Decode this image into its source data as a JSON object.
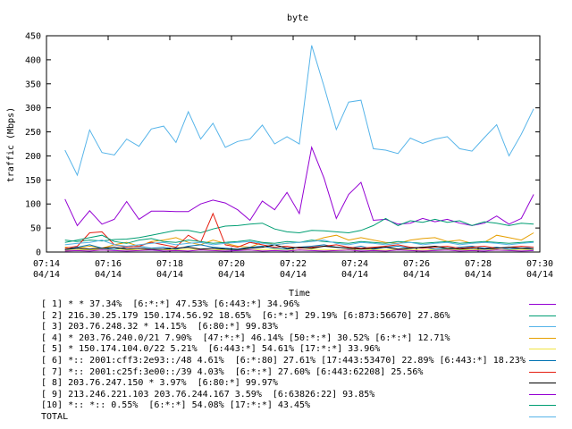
{
  "chart_data": {
    "type": "line",
    "title": "byte",
    "xlabel": "Time",
    "ylabel": "traffic (Mbps)",
    "ylim": [
      0,
      450
    ],
    "yticks": [
      0,
      50,
      100,
      150,
      200,
      250,
      300,
      350,
      400,
      450
    ],
    "xlim": [
      0,
      16
    ],
    "x_ticks": [
      {
        "x": 0,
        "line1": "07:14",
        "line2": "04/14"
      },
      {
        "x": 2,
        "line1": "07:16",
        "line2": "04/14"
      },
      {
        "x": 4,
        "line1": "07:18",
        "line2": "04/14"
      },
      {
        "x": 6,
        "line1": "07:20",
        "line2": "04/14"
      },
      {
        "x": 8,
        "line1": "07:22",
        "line2": "04/14"
      },
      {
        "x": 10,
        "line1": "07:24",
        "line2": "04/14"
      },
      {
        "x": 12,
        "line1": "07:26",
        "line2": "04/14"
      },
      {
        "x": 14,
        "line1": "07:28",
        "line2": "04/14"
      },
      {
        "x": 16,
        "line1": "07:30",
        "line2": "04/14"
      }
    ],
    "x": [
      0.6,
      1.0,
      1.4,
      1.8,
      2.2,
      2.6,
      3.0,
      3.4,
      3.8,
      4.2,
      4.6,
      5.0,
      5.4,
      5.8,
      6.2,
      6.6,
      7.0,
      7.4,
      7.8,
      8.2,
      8.6,
      9.0,
      9.4,
      9.8,
      10.2,
      10.6,
      11.0,
      11.4,
      11.8,
      12.2,
      12.6,
      13.0,
      13.4,
      13.8,
      14.2,
      14.6,
      15.0,
      15.4,
      15.8
    ],
    "series": [
      {
        "name": "[ 1] * * 37.34%  [6:*:*] 47.53% [6:443:*] 34.96%",
        "color": "#9400d3",
        "values": [
          110,
          55,
          86,
          58,
          68,
          105,
          68,
          85,
          85,
          84,
          84,
          100,
          108,
          102,
          88,
          66,
          106,
          88,
          124,
          80,
          218,
          154,
          70,
          120,
          145,
          66,
          68,
          58,
          60,
          70,
          63,
          68,
          60,
          55,
          60,
          75,
          58,
          70,
          120
        ]
      },
      {
        "name": "[ 2] 216.30.25.179 150.174.56.92 18.65%  [6:*:*] 29.19% [6:873:56670] 27.86%",
        "color": "#009e73",
        "values": [
          25,
          22,
          25,
          23,
          26,
          27,
          30,
          35,
          40,
          45,
          45,
          40,
          48,
          54,
          55,
          58,
          60,
          48,
          42,
          40,
          45,
          44,
          42,
          40,
          45,
          55,
          70,
          55,
          65,
          62,
          68,
          62,
          65,
          55,
          63,
          60,
          55,
          60,
          58
        ]
      },
      {
        "name": "[ 3] 203.76.248.32 * 14.15%  [6:80:*] 99.83%",
        "color": "#56b4e9",
        "values": [
          212,
          160,
          254,
          207,
          202,
          235,
          220,
          256,
          262,
          228,
          292,
          235,
          268,
          218,
          230,
          235,
          264,
          225,
          240,
          225,
          430,
          345,
          255,
          312,
          316,
          215,
          212,
          205,
          237,
          226,
          235,
          240,
          215,
          210,
          238,
          265,
          200,
          245,
          298
        ]
      },
      {
        "name": "[ 4] * 203.76.240.0/21 7.90%  [47:*:*] 46.14% [50:*:*] 30.52% [6:*:*] 12.71%",
        "color": "#e69f00",
        "values": [
          10,
          8,
          12,
          8,
          15,
          20,
          12,
          22,
          25,
          30,
          20,
          15,
          25,
          18,
          12,
          10,
          20,
          15,
          18,
          20,
          22,
          30,
          35,
          25,
          30,
          25,
          20,
          18,
          25,
          28,
          30,
          22,
          25,
          18,
          20,
          35,
          30,
          25,
          40
        ]
      },
      {
        "name": "[ 5] * 150.174.104.0/22 5.21%  [6:443:*] 54.61% [17:*:*] 33.96%",
        "color": "#f0e442",
        "values": [
          3,
          4,
          5,
          4,
          6,
          5,
          4,
          6,
          5,
          4,
          6,
          5,
          4,
          5,
          6,
          4,
          5,
          6,
          5,
          4,
          6,
          5,
          4,
          5,
          6,
          5,
          4,
          6,
          5,
          4,
          5,
          6,
          5,
          4,
          6,
          5,
          4,
          5,
          6
        ]
      },
      {
        "name": "[ 6] *:: 2001:cff3:2e93::/48 4.61%  [6:*:80] 27.61% [17:443:53470] 22.89% [6:443:*] 18.23%",
        "color": "#0072b2",
        "values": [
          5,
          10,
          15,
          8,
          6,
          10,
          12,
          8,
          10,
          6,
          12,
          15,
          10,
          8,
          6,
          10,
          12,
          8,
          6,
          10,
          12,
          15,
          10,
          8,
          12,
          6,
          10,
          12,
          8,
          10,
          6,
          8,
          10,
          12,
          8,
          10,
          6,
          8,
          10
        ]
      },
      {
        "name": "[ 7] *:: 2001:c25f:3e00::/39 4.03%  [6:*:*] 27.60% [6:443:62208] 25.56%",
        "color": "#e51e10",
        "values": [
          8,
          12,
          40,
          42,
          15,
          10,
          12,
          20,
          15,
          10,
          35,
          20,
          80,
          15,
          10,
          20,
          15,
          10,
          12,
          8,
          10,
          12,
          15,
          10,
          8,
          10,
          12,
          15,
          10,
          8,
          10,
          12,
          8,
          10,
          12,
          8,
          10,
          12,
          10
        ]
      },
      {
        "name": "[ 8] 203.76.247.150 * 3.97%  [6:80:*] 99.97%",
        "color": "#000000",
        "values": [
          5,
          8,
          6,
          8,
          10,
          6,
          8,
          5,
          6,
          8,
          10,
          6,
          8,
          6,
          5,
          8,
          10,
          15,
          8,
          10,
          8,
          12,
          10,
          8,
          6,
          8,
          10,
          6,
          8,
          10,
          12,
          8,
          6,
          8,
          6,
          8,
          10,
          8,
          6
        ]
      },
      {
        "name": "[ 9] 213.246.221.103 203.76.244.167 3.59%  [6:63826:22] 93.85%",
        "color": "#9400d3",
        "values": [
          2,
          3,
          2,
          4,
          3,
          2,
          3,
          4,
          2,
          3,
          2,
          4,
          3,
          2,
          3,
          4,
          2,
          3,
          2,
          4,
          3,
          2,
          3,
          4,
          2,
          3,
          2,
          4,
          3,
          2,
          3,
          4,
          2,
          3,
          2,
          4,
          3,
          2,
          3
        ]
      },
      {
        "name": "[10] *:: *:: 0.55%  [6:*:*] 54.08% [17:*:*] 43.45%",
        "color": "#009e73",
        "values": [
          20,
          25,
          30,
          35,
          22,
          18,
          25,
          28,
          22,
          20,
          25,
          22,
          18,
          20,
          22,
          25,
          20,
          18,
          22,
          20,
          25,
          22,
          20,
          18,
          22,
          20,
          18,
          22,
          20,
          18,
          20,
          22,
          18,
          20,
          22,
          20,
          18,
          20,
          22
        ]
      },
      {
        "name": "TOTAL",
        "color": "#56b4e9",
        "values": [
          15,
          18,
          20,
          25,
          15,
          12,
          15,
          18,
          20,
          15,
          18,
          20,
          15,
          18,
          20,
          22,
          18,
          15,
          18,
          20,
          22,
          25,
          18,
          15,
          20,
          18,
          15,
          18,
          20,
          15,
          18,
          20,
          15,
          18,
          20,
          18,
          15,
          18,
          20
        ]
      }
    ]
  }
}
